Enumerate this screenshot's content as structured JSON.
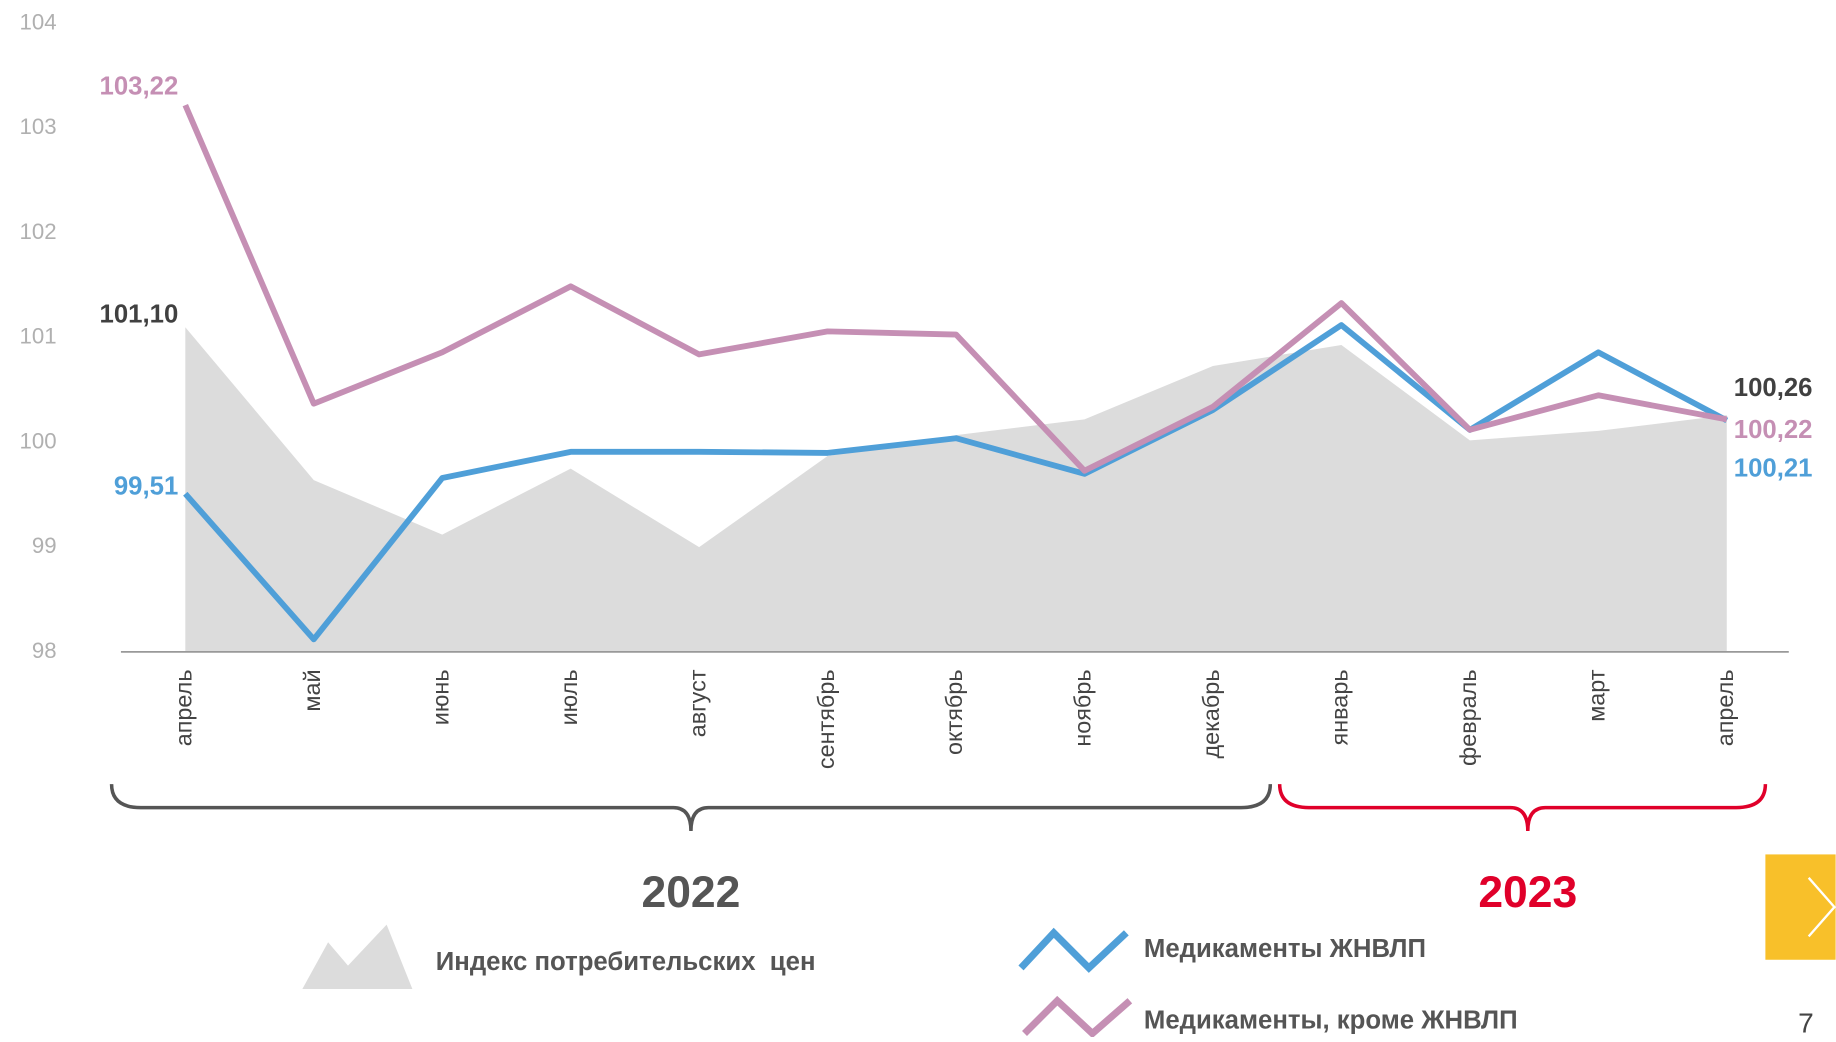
{
  "chart_data": {
    "type": "line",
    "categories": [
      "апрель",
      "май",
      "июнь",
      "июль",
      "август",
      "сентябрь",
      "октябрь",
      "ноябрь",
      "декабрь",
      "январь",
      "февраль",
      "март",
      "апрель"
    ],
    "series": [
      {
        "name": "Индекс потребительских  цен",
        "kind": "area",
        "color": "#dcdcdc",
        "label_color": "#404040",
        "values": [
          101.1,
          99.64,
          99.12,
          99.75,
          99.0,
          99.87,
          100.07,
          100.22,
          100.73,
          100.93,
          100.02,
          100.11,
          100.26
        ],
        "value_labels": [
          "101,10",
          null,
          null,
          null,
          null,
          null,
          null,
          null,
          null,
          null,
          null,
          null,
          "100,26"
        ]
      },
      {
        "name": "Медикаменты ЖНВЛП",
        "kind": "line",
        "color": "#4f9fd8",
        "label_color": "#4f9fd8",
        "values": [
          99.51,
          98.12,
          99.66,
          99.91,
          99.91,
          99.9,
          100.04,
          99.7,
          100.31,
          101.12,
          100.12,
          100.86,
          100.21
        ],
        "value_labels": [
          "99,51",
          null,
          null,
          null,
          null,
          null,
          null,
          null,
          null,
          null,
          null,
          null,
          "100,21"
        ]
      },
      {
        "name": "Медикаменты, кроме ЖНВЛП",
        "kind": "line",
        "color": "#c58fb4",
        "label_color": "#c58fb4",
        "values": [
          103.22,
          100.37,
          100.86,
          101.49,
          100.84,
          101.06,
          101.03,
          99.73,
          100.34,
          101.33,
          100.12,
          100.45,
          100.22
        ],
        "value_labels": [
          "103,22",
          null,
          null,
          null,
          null,
          null,
          null,
          null,
          null,
          null,
          null,
          null,
          "100,22"
        ]
      }
    ],
    "ylim": [
      98,
      104
    ],
    "yticks": [
      98,
      99,
      100,
      101,
      102,
      103,
      104
    ],
    "groups": [
      {
        "label": "2022",
        "color": "#555555"
      },
      {
        "label": "2023",
        "color": "#e0002a"
      }
    ],
    "page_number": "7"
  }
}
